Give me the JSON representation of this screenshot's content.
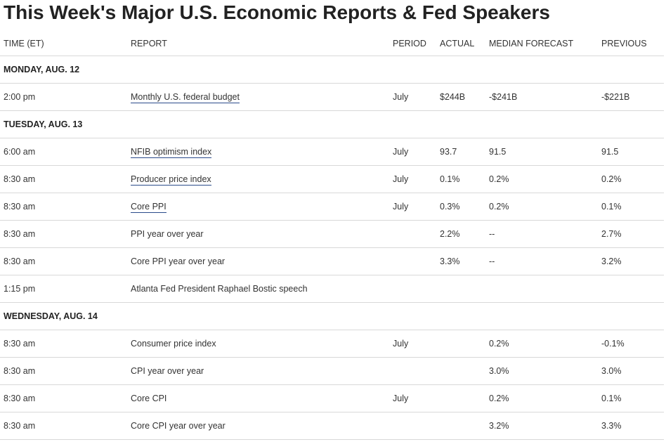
{
  "title": "This Week's Major U.S. Economic Reports & Fed Speakers",
  "columns": [
    "TIME (ET)",
    "REPORT",
    "PERIOD",
    "ACTUAL",
    "MEDIAN FORECAST",
    "PREVIOUS"
  ],
  "rows": [
    {
      "type": "day",
      "label": "MONDAY, AUG. 12"
    },
    {
      "type": "report",
      "time": "2:00 pm",
      "report": "Monthly U.S. federal budget",
      "linked": true,
      "period": "July",
      "actual": "$244B",
      "median": "-$241B",
      "previous": "-$221B"
    },
    {
      "type": "day",
      "label": "TUESDAY, AUG. 13"
    },
    {
      "type": "report",
      "time": "6:00 am",
      "report": "NFIB optimism index",
      "linked": true,
      "period": "July",
      "actual": "93.7",
      "median": "91.5",
      "previous": "91.5"
    },
    {
      "type": "report",
      "time": "8:30 am",
      "report": "Producer price index",
      "linked": true,
      "period": "July",
      "actual": "0.1%",
      "median": "0.2%",
      "previous": "0.2%"
    },
    {
      "type": "report",
      "time": "8:30 am",
      "report": "Core PPI",
      "linked": true,
      "period": "July",
      "actual": "0.3%",
      "median": "0.2%",
      "previous": "0.1%"
    },
    {
      "type": "report",
      "time": "8:30 am",
      "report": "PPI year over year",
      "linked": false,
      "period": "",
      "actual": "2.2%",
      "median": "--",
      "previous": "2.7%"
    },
    {
      "type": "report",
      "time": "8:30 am",
      "report": "Core PPI year over year",
      "linked": false,
      "period": "",
      "actual": "3.3%",
      "median": "--",
      "previous": "3.2%"
    },
    {
      "type": "report",
      "time": "1:15 pm",
      "report": "Atlanta Fed President Raphael Bostic speech",
      "linked": false,
      "period": "",
      "actual": "",
      "median": "",
      "previous": ""
    },
    {
      "type": "day",
      "label": "WEDNESDAY, AUG. 14"
    },
    {
      "type": "report",
      "time": "8:30 am",
      "report": "Consumer price index",
      "linked": false,
      "period": "July",
      "actual": "",
      "median": "0.2%",
      "previous": "-0.1%"
    },
    {
      "type": "report",
      "time": "8:30 am",
      "report": "CPI year over year",
      "linked": false,
      "period": "",
      "actual": "",
      "median": "3.0%",
      "previous": "3.0%"
    },
    {
      "type": "report",
      "time": "8:30 am",
      "report": "Core CPI",
      "linked": false,
      "period": "July",
      "actual": "",
      "median": "0.2%",
      "previous": "0.1%"
    },
    {
      "type": "report",
      "time": "8:30 am",
      "report": "Core CPI year over year",
      "linked": false,
      "period": "",
      "actual": "",
      "median": "3.2%",
      "previous": "3.3%"
    }
  ]
}
